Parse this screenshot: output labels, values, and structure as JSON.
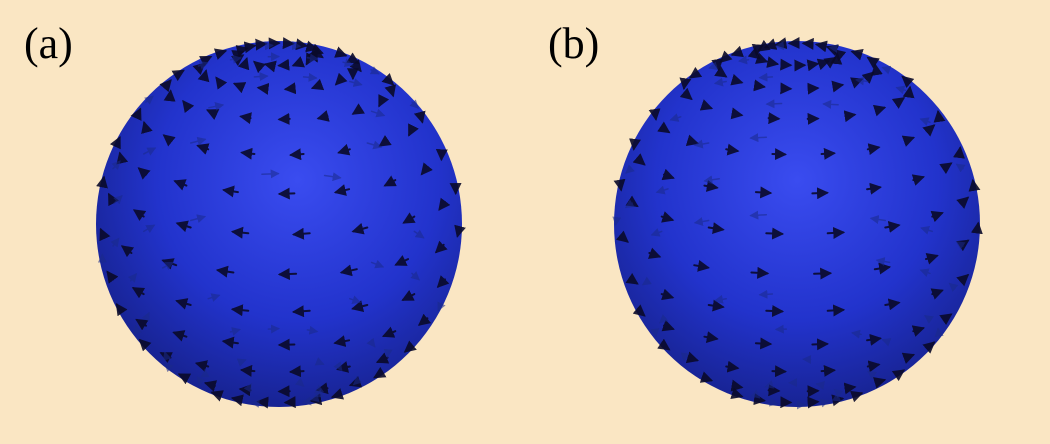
{
  "panels": [
    {
      "label": "(a)",
      "field": "meridional-circulation",
      "sphere_color": "#2233cc",
      "arrow_color": "#0a0a2a"
    },
    {
      "label": "(b)",
      "field": "azimuthal-circulation",
      "sphere_color": "#2233cc",
      "arrow_color": "#0a0a2a"
    }
  ],
  "background_color": "#fae6c3"
}
